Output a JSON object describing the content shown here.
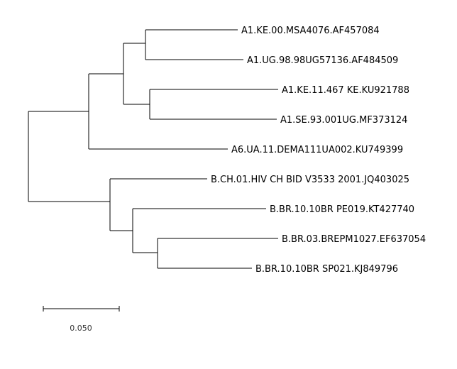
{
  "tree": {
    "taxa": [
      "A1.KE.00.MSA4076.AF457084",
      "A1.UG.98.98UG57136.AF484509",
      "A1.KE.11.467 KE.KU921788",
      "A1.SE.93.001UG.MF373124",
      "A6.UA.11.DEMA111UA002.KU749399",
      "B.CH.01.HIV CH BID V3533 2001.JQ403025",
      "B.BR.10.10BR PE019.KT427740",
      "B.BR.03.BREPM1027.EF637054",
      "B.BR.10.10BR SP021.KJ849796"
    ],
    "scale_bar": {
      "label": "0.050",
      "value": 0.05
    }
  },
  "colors": {
    "branch": "#000000",
    "text": "#000000",
    "background": "#ffffff"
  }
}
